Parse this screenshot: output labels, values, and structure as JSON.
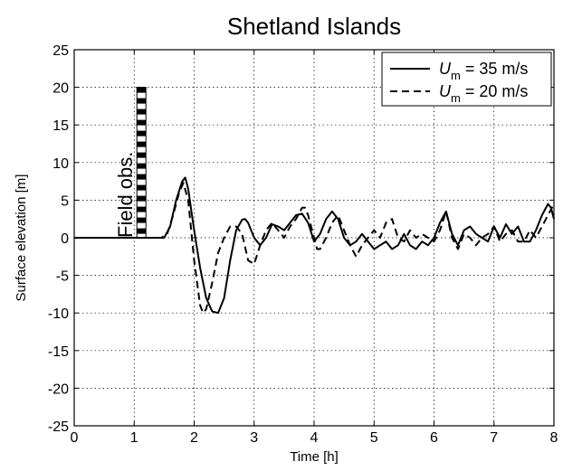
{
  "chart_data": {
    "type": "line",
    "title": "Shetland Islands",
    "xlabel": "Time [h]",
    "ylabel": "Surface elevation [m]",
    "xlim": [
      0,
      8
    ],
    "ylim": [
      -25,
      25
    ],
    "xticks": [
      0,
      1,
      2,
      3,
      4,
      5,
      6,
      7,
      8
    ],
    "yticks": [
      25,
      20,
      15,
      10,
      5,
      0,
      -5,
      -10,
      -15,
      -20,
      -25
    ],
    "grid": true,
    "legend_position": "top-right",
    "annotation": {
      "text": "Field obs.",
      "x": 1.12,
      "y_range": [
        0,
        20
      ],
      "style": "checkered-black-white-bar"
    },
    "series": [
      {
        "name_main": "U",
        "name_sub": "m",
        "name_rest": " = 35 m/s",
        "line_style": "solid",
        "color": "#000000",
        "x": [
          0,
          1.5,
          1.6,
          1.7,
          1.8,
          1.85,
          1.9,
          2.0,
          2.1,
          2.2,
          2.3,
          2.4,
          2.5,
          2.6,
          2.7,
          2.8,
          2.85,
          2.9,
          3.0,
          3.1,
          3.2,
          3.3,
          3.4,
          3.5,
          3.6,
          3.7,
          3.8,
          3.9,
          4.0,
          4.1,
          4.2,
          4.3,
          4.4,
          4.5,
          4.6,
          4.7,
          4.8,
          4.9,
          5.0,
          5.1,
          5.2,
          5.3,
          5.4,
          5.5,
          5.6,
          5.7,
          5.8,
          5.9,
          6.0,
          6.1,
          6.2,
          6.3,
          6.4,
          6.5,
          6.6,
          6.7,
          6.8,
          6.9,
          7.0,
          7.1,
          7.2,
          7.3,
          7.4,
          7.5,
          7.6,
          7.7,
          7.8,
          7.9,
          7.95,
          8.0
        ],
        "y": [
          0,
          0,
          1.5,
          5,
          7.5,
          8,
          6.5,
          1,
          -4,
          -8,
          -9.8,
          -10,
          -8,
          -3,
          1,
          2.4,
          2.5,
          2,
          0,
          -1,
          0,
          1.8,
          1.5,
          1,
          2,
          3,
          3.2,
          2,
          -0.5,
          0.5,
          2.5,
          3.5,
          2.5,
          0,
          -1,
          -0.5,
          0.5,
          -0.5,
          -1.5,
          -1,
          -0.5,
          -1.5,
          -1,
          0.5,
          -1,
          -1.5,
          -0.5,
          -1,
          0,
          2,
          3.5,
          0.5,
          -1,
          1,
          1.5,
          0.5,
          0,
          -0.5,
          1.5,
          0,
          1.8,
          0.5,
          1.5,
          -0.5,
          -0.5,
          1,
          3,
          4.5,
          4,
          2.5
        ]
      },
      {
        "name_main": "U",
        "name_sub": "m",
        "name_rest": " = 20 m/s",
        "line_style": "dashed",
        "color": "#000000",
        "x": [
          0,
          1.45,
          1.55,
          1.65,
          1.75,
          1.82,
          1.9,
          2.0,
          2.1,
          2.15,
          2.2,
          2.3,
          2.4,
          2.5,
          2.6,
          2.7,
          2.8,
          2.9,
          3.0,
          3.1,
          3.2,
          3.3,
          3.4,
          3.5,
          3.6,
          3.7,
          3.8,
          3.85,
          3.9,
          4.0,
          4.05,
          4.1,
          4.2,
          4.3,
          4.4,
          4.5,
          4.6,
          4.7,
          4.8,
          4.9,
          5.0,
          5.1,
          5.2,
          5.3,
          5.4,
          5.5,
          5.6,
          5.7,
          5.8,
          5.9,
          6.0,
          6.1,
          6.2,
          6.3,
          6.4,
          6.5,
          6.6,
          6.7,
          6.8,
          6.9,
          7.0,
          7.1,
          7.2,
          7.3,
          7.4,
          7.5,
          7.6,
          7.7,
          7.8,
          7.9,
          8.0
        ],
        "y": [
          0,
          0,
          0.5,
          3,
          6,
          7.3,
          5,
          -3,
          -9,
          -10,
          -9.5,
          -6,
          -2,
          0,
          1.5,
          1.5,
          0.5,
          -3,
          -3.5,
          -1,
          1,
          2,
          1,
          0,
          1.5,
          2.5,
          4,
          4,
          3,
          0,
          -1.5,
          -1.5,
          0,
          2,
          3,
          1,
          -1,
          -2.5,
          -1,
          0,
          1,
          0,
          2,
          2.5,
          0,
          -0.5,
          1,
          0,
          0.5,
          0,
          -0.5,
          1,
          3.5,
          0,
          -1.5,
          0.5,
          0,
          -1,
          0,
          0.5,
          1.5,
          -0.5,
          0.5,
          1,
          -0.5,
          -0.5,
          1,
          0,
          1.5,
          3,
          4.5
        ]
      }
    ]
  }
}
